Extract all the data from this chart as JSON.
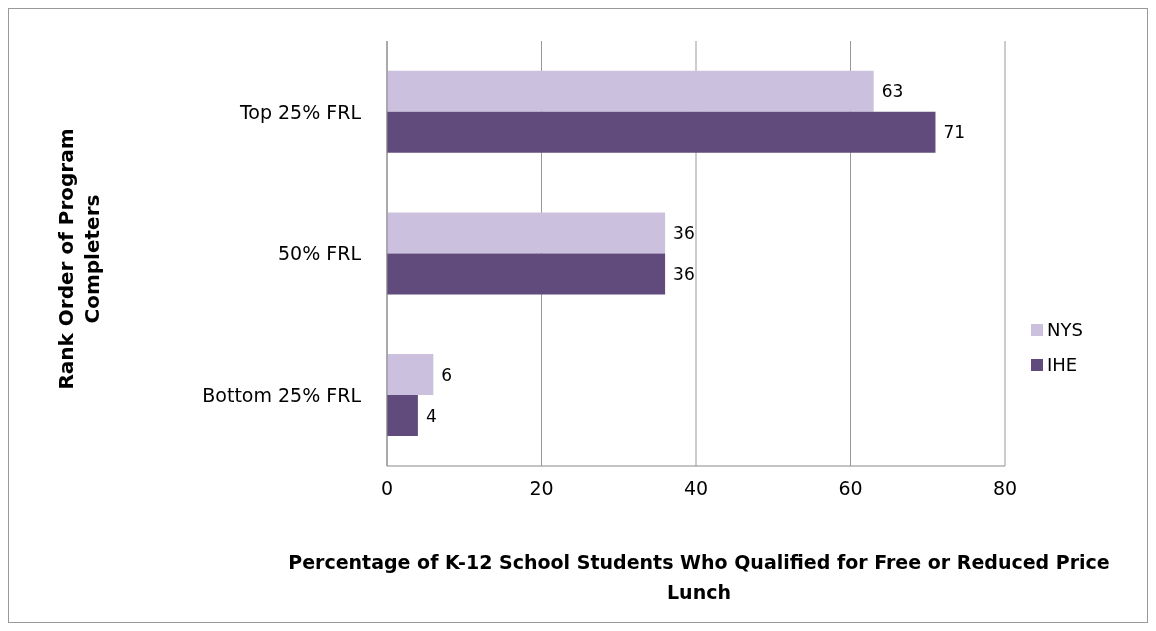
{
  "chart_data": {
    "type": "bar",
    "orientation": "horizontal",
    "xlabel": "Percentage of K-12 School Students Who Qualified for Free or Reduced Price Lunch",
    "ylabel": "Rank Order of Program Completers",
    "categories": [
      "Top 25% FRL",
      "50% FRL",
      "Bottom 25% FRL"
    ],
    "series": [
      {
        "name": "NYS",
        "color": "#cbc0dd",
        "values": [
          63,
          36,
          6
        ]
      },
      {
        "name": "IHE",
        "color": "#614b7c",
        "values": [
          71,
          36,
          4
        ]
      }
    ],
    "xlim": [
      0,
      80
    ],
    "xticks": [
      0,
      20,
      40,
      60,
      80
    ],
    "grid": "x",
    "legend": "right",
    "data_labels": true
  }
}
